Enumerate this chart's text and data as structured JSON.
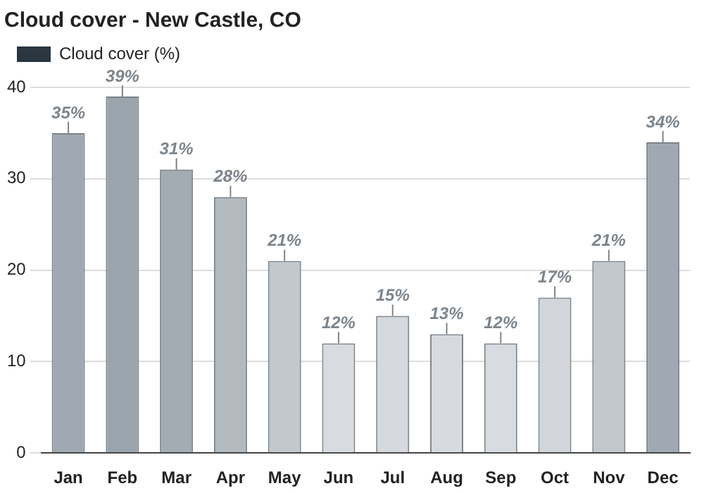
{
  "chart_data": {
    "type": "bar",
    "title": "Cloud cover - New Castle, CO",
    "categories": [
      "Jan",
      "Feb",
      "Mar",
      "Apr",
      "May",
      "Jun",
      "Jul",
      "Aug",
      "Sep",
      "Oct",
      "Nov",
      "Dec"
    ],
    "series": [
      {
        "name": "Cloud cover (%)",
        "color": "#2b3640",
        "values": [
          35,
          39,
          31,
          28,
          21,
          12,
          15,
          13,
          12,
          17,
          21,
          34
        ],
        "colors": [
          "#a0a9b1",
          "#9aa4ad",
          "#a3abb3",
          "#b3bac0",
          "#c3c8cd",
          "#d8dce0",
          "#d5d9dd",
          "#d7dbdf",
          "#d8dce0",
          "#d2d6da",
          "#c3c8cd",
          "#a0a9b1"
        ],
        "value_labels": [
          "35%",
          "39%",
          "31%",
          "28%",
          "21%",
          "12%",
          "15%",
          "13%",
          "12%",
          "17%",
          "21%",
          "34%"
        ]
      }
    ],
    "ylim": [
      0,
      40
    ],
    "yticks": [
      0,
      10,
      20,
      30,
      40
    ],
    "grid": "y",
    "legend": "top left"
  }
}
